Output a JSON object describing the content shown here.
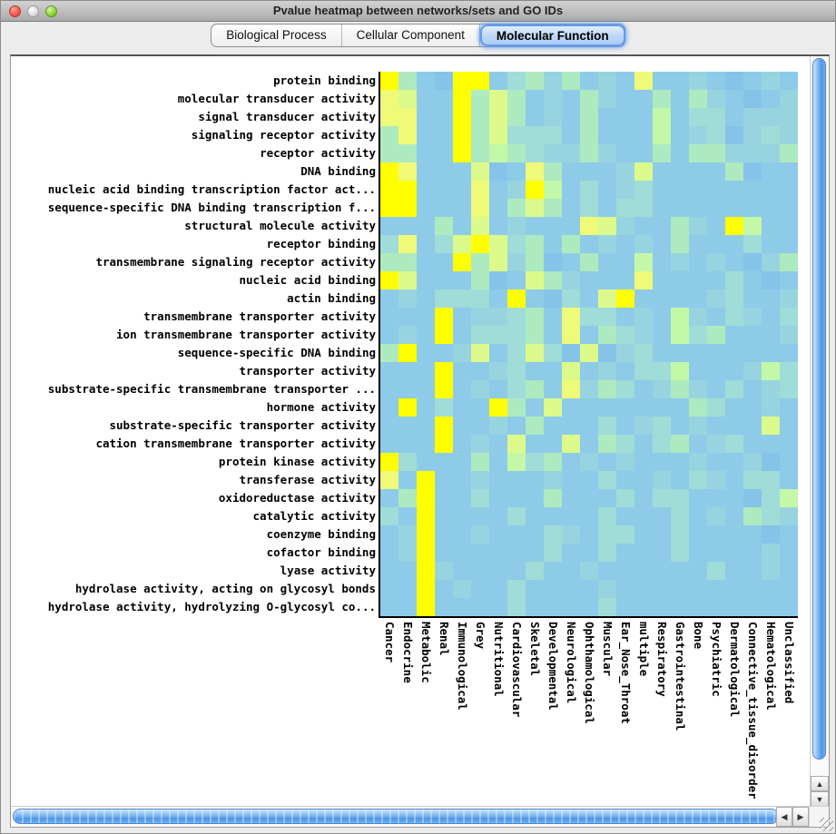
{
  "window": {
    "title": "Pvalue heatmap between networks/sets and GO IDs"
  },
  "tabs": [
    {
      "label": "Biological Process",
      "selected": false
    },
    {
      "label": "Cellular Component",
      "selected": false
    },
    {
      "label": "Molecular Function",
      "selected": true
    }
  ],
  "chart_data": {
    "type": "heatmap",
    "title": "Pvalue heatmap between networks/sets and GO IDs",
    "selected_ontology": "Molecular Function",
    "colormap_note": "light blue = low significance, bright yellow = high significance",
    "rows": [
      "protein binding",
      "molecular transducer activity",
      "signal transducer activity",
      "signaling receptor activity",
      "receptor activity",
      "DNA binding",
      "nucleic acid binding transcription factor act...",
      "sequence-specific DNA binding transcription f...",
      "structural molecule activity",
      "receptor binding",
      "transmembrane signaling receptor activity",
      "nucleic acid binding",
      "actin binding",
      "transmembrane transporter activity",
      "ion transmembrane transporter activity",
      "sequence-specific DNA binding",
      "transporter activity",
      "substrate-specific transmembrane transporter ...",
      "hormone activity",
      "substrate-specific transporter activity",
      "cation transmembrane transporter activity",
      "protein kinase activity",
      "transferase activity",
      "oxidoreductase activity",
      "catalytic activity",
      "coenzyme binding",
      "cofactor binding",
      "lyase activity",
      "hydrolase activity, acting on glycosyl bonds",
      "hydrolase activity, hydrolyzing O-glycosyl co..."
    ],
    "columns": [
      "Cancer",
      "Endocrine",
      "Metabolic",
      "Renal",
      "Immunological",
      "Grey",
      "Nutritional",
      "Cardiovascular",
      "Skeletal",
      "Developmental",
      "Neurological",
      "Ophthamological",
      "Muscular",
      "Ear_Nose_Throat",
      "multiple",
      "Respiratory",
      "Gastrointestinal",
      "Bone",
      "Psychiatric",
      "Dermatological",
      "Connective_tissue_disorder",
      "Hematological",
      "Unclassified"
    ],
    "palette": {
      "B": "#8dcbe8",
      "b": "#85c4e8",
      "t": "#98d4e0",
      "T": "#a0dcd8",
      "M": "#aeeabf",
      "m": "#c3f8a8",
      "G": "#dcfa8c",
      "Y": "#eefa78",
      "F": "#ffff00"
    },
    "cells": [
      "FMBbFFBTMtMBtBYBBtBbBtB",
      "YGBBFMGMBtBMtBBMBMtBbBt",
      "YYBBFMGMBtBMBBBmBTTBttt",
      "MYBBFMGTTTBMBBBmBtTbtTt",
      "MMBBFMmMTttMtBBMBMMtttM",
      "FYBBBGbBYMBBBtGBBBBMbBB",
      "FFBBBYBtFmBTBtTBBBBBBBB",
      "FFBBBYBMGMBTBTTBBBBBBBB",
      "BBBMBGBtBBBYGtBBMtBFmBB",
      "TYBTGFGTMBMBtBtBMBBBTBB",
      "MMBBFMGtMbBMBBmBtBtBbtM",
      "FGBBBMbBGMtBBBYBBBBTBbB",
      "BtBTTTBFBbTBGFBBBBtTBBt",
      "BBBFBttTMBYTTBtBmtBTtBT",
      "BtBFBTTTMBYBMTtBmTMBBBt",
      "MFBBtGBTGTbGbtTBBBBBBBB",
      "BBBFBBtTBBGBtBTTmBBBtmT",
      "BBBFBtBTMBYtMTBtMtBTBtT",
      "BFBTBBFMBGBBBBBBBMTBBtB",
      "BBBFBBtBMBBBTBtTBtBBBGB",
      "BBBFBtBGBBGBMTBTMBtTBBB",
      "FTBBBMBmTMBtBtBBBtBBtbB",
      "YBFBBtBBBtBBTBBtBTtBTTB",
      "BMFBBTBBBMBBBTBTTBBBbTm",
      "TBFBBBBTBBBBTBBBTBtBMTt",
      "BtFBBtBBBTtBTTBBTBBBBbB",
      "BtFBBBBBBTBBTBBBTBBBBtB",
      "BBFtBBBBTBBtBBBBBBTBBtB",
      "BBFBtBBTBBBBtBBBBBBBBBB",
      "BBFBBBBTBBBBTBBBBBBBBBB"
    ]
  },
  "scrollbars": {
    "up_arrow": "▲",
    "down_arrow": "▼",
    "left_arrow": "◀",
    "right_arrow": "▶"
  }
}
